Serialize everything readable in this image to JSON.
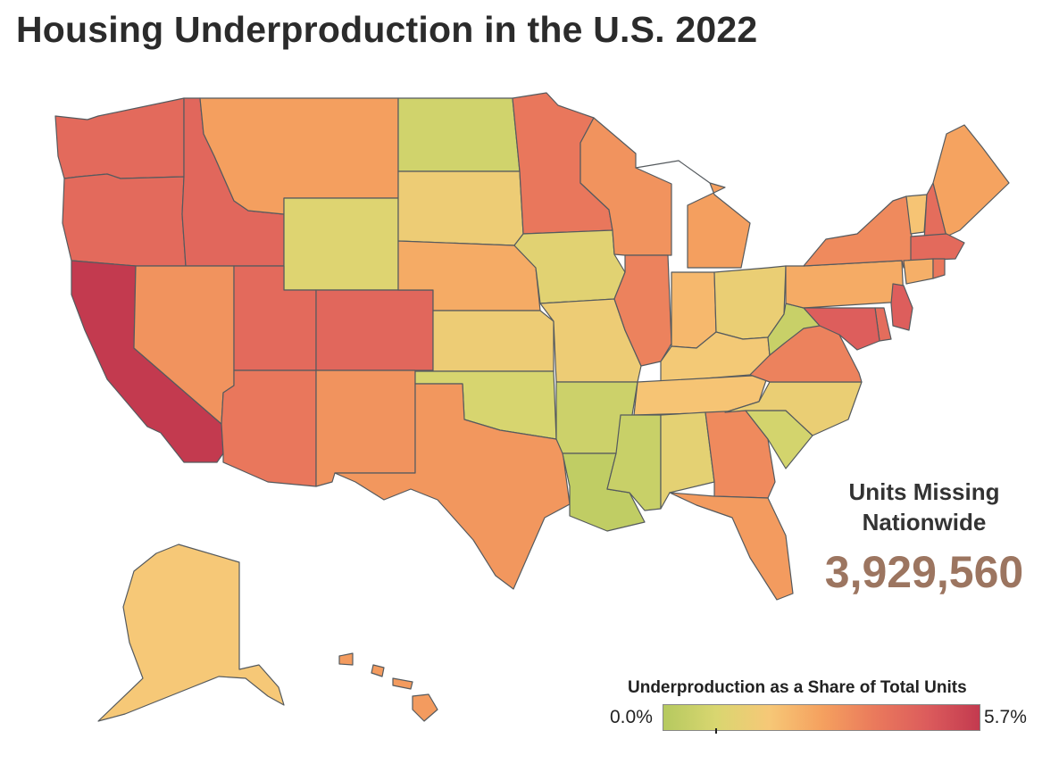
{
  "title": "Housing Underproduction in the U.S. 2022",
  "stat": {
    "label_line1": "Units Missing",
    "label_line2": "Nationwide",
    "value": "3,929,560"
  },
  "legend": {
    "title": "Underproduction as a Share of Total Units",
    "min_label": "0.0%",
    "max_label": "5.7%",
    "min_value": 0.0,
    "max_value": 5.7,
    "colors": [
      "#b5c95f",
      "#d9d670",
      "#f6c877",
      "#f5a15f",
      "#ea7a5c",
      "#dc5c5c",
      "#c33a4f"
    ]
  },
  "states": [
    {
      "code": "WA",
      "share": 4.3
    },
    {
      "code": "OR",
      "share": 4.3
    },
    {
      "code": "CA",
      "share": 5.7
    },
    {
      "code": "ID",
      "share": 4.4
    },
    {
      "code": "NV",
      "share": 3.2
    },
    {
      "code": "MT",
      "share": 2.9
    },
    {
      "code": "WY",
      "share": 1.1
    },
    {
      "code": "UT",
      "share": 4.3
    },
    {
      "code": "AZ",
      "share": 3.9
    },
    {
      "code": "CO",
      "share": 4.4
    },
    {
      "code": "NM",
      "share": 3.2
    },
    {
      "code": "ND",
      "share": 0.7
    },
    {
      "code": "SD",
      "share": 1.6
    },
    {
      "code": "NE",
      "share": 2.6
    },
    {
      "code": "KS",
      "share": 1.6
    },
    {
      "code": "OK",
      "share": 0.9
    },
    {
      "code": "TX",
      "share": 3.1
    },
    {
      "code": "MN",
      "share": 3.9
    },
    {
      "code": "IA",
      "share": 1.2
    },
    {
      "code": "MO",
      "share": 1.6
    },
    {
      "code": "AR",
      "share": 0.6
    },
    {
      "code": "LA",
      "share": 0.3
    },
    {
      "code": "WI",
      "share": 3.2
    },
    {
      "code": "IL",
      "share": 3.6
    },
    {
      "code": "MI",
      "share": 2.9
    },
    {
      "code": "IN",
      "share": 2.3
    },
    {
      "code": "OH",
      "share": 1.5
    },
    {
      "code": "KY",
      "share": 1.8
    },
    {
      "code": "TN",
      "share": 2.0
    },
    {
      "code": "MS",
      "share": 0.5
    },
    {
      "code": "AL",
      "share": 1.3
    },
    {
      "code": "GA",
      "share": 3.4
    },
    {
      "code": "FL",
      "share": 3.0
    },
    {
      "code": "SC",
      "share": 0.8
    },
    {
      "code": "NC",
      "share": 1.5
    },
    {
      "code": "VA",
      "share": 3.6
    },
    {
      "code": "WV",
      "share": 0.5
    },
    {
      "code": "PA",
      "share": 2.6
    },
    {
      "code": "NY",
      "share": 3.4
    },
    {
      "code": "VT",
      "share": 2.0
    },
    {
      "code": "NH",
      "share": 4.2
    },
    {
      "code": "ME",
      "share": 2.8
    },
    {
      "code": "MA",
      "share": 4.3
    },
    {
      "code": "CT",
      "share": 2.5
    },
    {
      "code": "RI",
      "share": 3.9
    },
    {
      "code": "NJ",
      "share": 4.7
    },
    {
      "code": "DE",
      "share": 4.2
    },
    {
      "code": "MD",
      "share": 4.7
    },
    {
      "code": "AK",
      "share": 1.9
    },
    {
      "code": "HI",
      "share": 3.0
    }
  ]
}
